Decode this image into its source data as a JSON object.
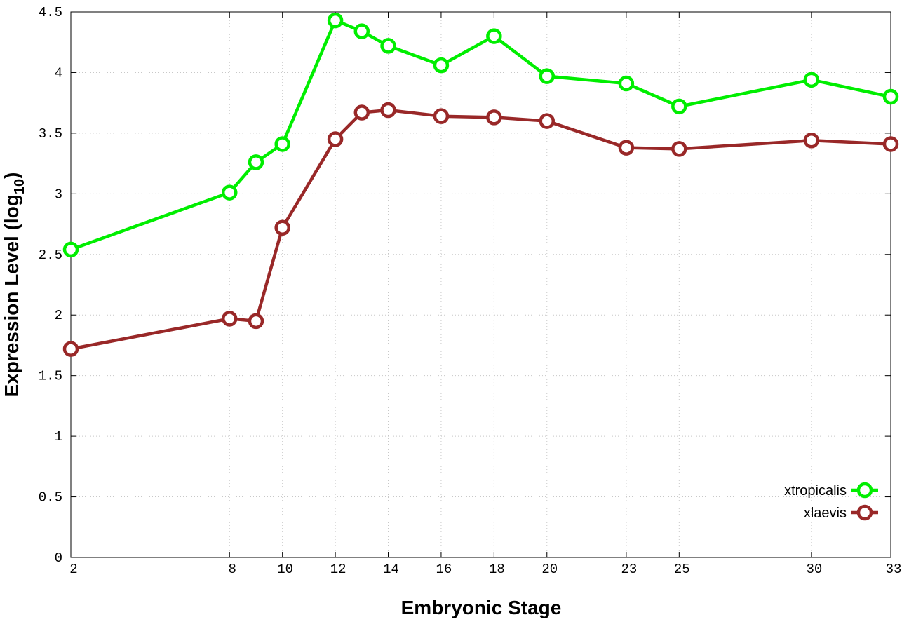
{
  "chart_data": {
    "type": "line",
    "x_label": "Embryonic Stage",
    "y_label_parts": [
      "Expression Level (log",
      "10",
      ")"
    ],
    "x": [
      2,
      8,
      9,
      10,
      12,
      13,
      14,
      16,
      18,
      20,
      23,
      25,
      30,
      33
    ],
    "series": [
      {
        "name": "xtropicalis",
        "color": "#00ee00",
        "values": [
          2.54,
          3.01,
          3.26,
          3.41,
          4.43,
          4.34,
          4.22,
          4.06,
          4.3,
          3.97,
          3.91,
          3.72,
          3.94,
          3.8
        ]
      },
      {
        "name": "xlaevis",
        "color": "#992828",
        "values": [
          1.72,
          1.97,
          1.95,
          2.72,
          3.45,
          3.67,
          3.69,
          3.64,
          3.63,
          3.6,
          3.38,
          3.37,
          3.44,
          3.41
        ]
      }
    ],
    "xlim": [
      2,
      33
    ],
    "xticks": [
      2,
      8,
      10,
      12,
      14,
      16,
      18,
      20,
      23,
      25,
      30,
      33
    ],
    "ylim": [
      0,
      4.5
    ],
    "yticks": [
      0,
      0.5,
      1,
      1.5,
      2,
      2.5,
      3,
      3.5,
      4,
      4.5
    ],
    "grid": true,
    "legend": "lower right"
  }
}
